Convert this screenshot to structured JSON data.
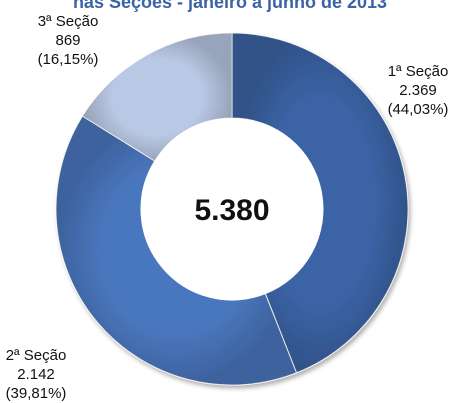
{
  "chart_data": {
    "type": "pie",
    "title": "nas Seções - janeiro a junho de 2013",
    "total_label": "5.380",
    "series": [
      {
        "categories": [
          "1ª Seção",
          "2ª Seção",
          "3ª Seção"
        ],
        "values": [
          2369,
          2142,
          869
        ],
        "value_labels": [
          "2.369",
          "2.142",
          "869"
        ],
        "percent_labels": [
          "(44,03%)",
          "(39,81%)",
          "(16,15%)"
        ],
        "colors": [
          "#3b64a6",
          "#4a77bf",
          "#b9c8e4"
        ]
      }
    ],
    "legend": "none",
    "grid": false
  }
}
